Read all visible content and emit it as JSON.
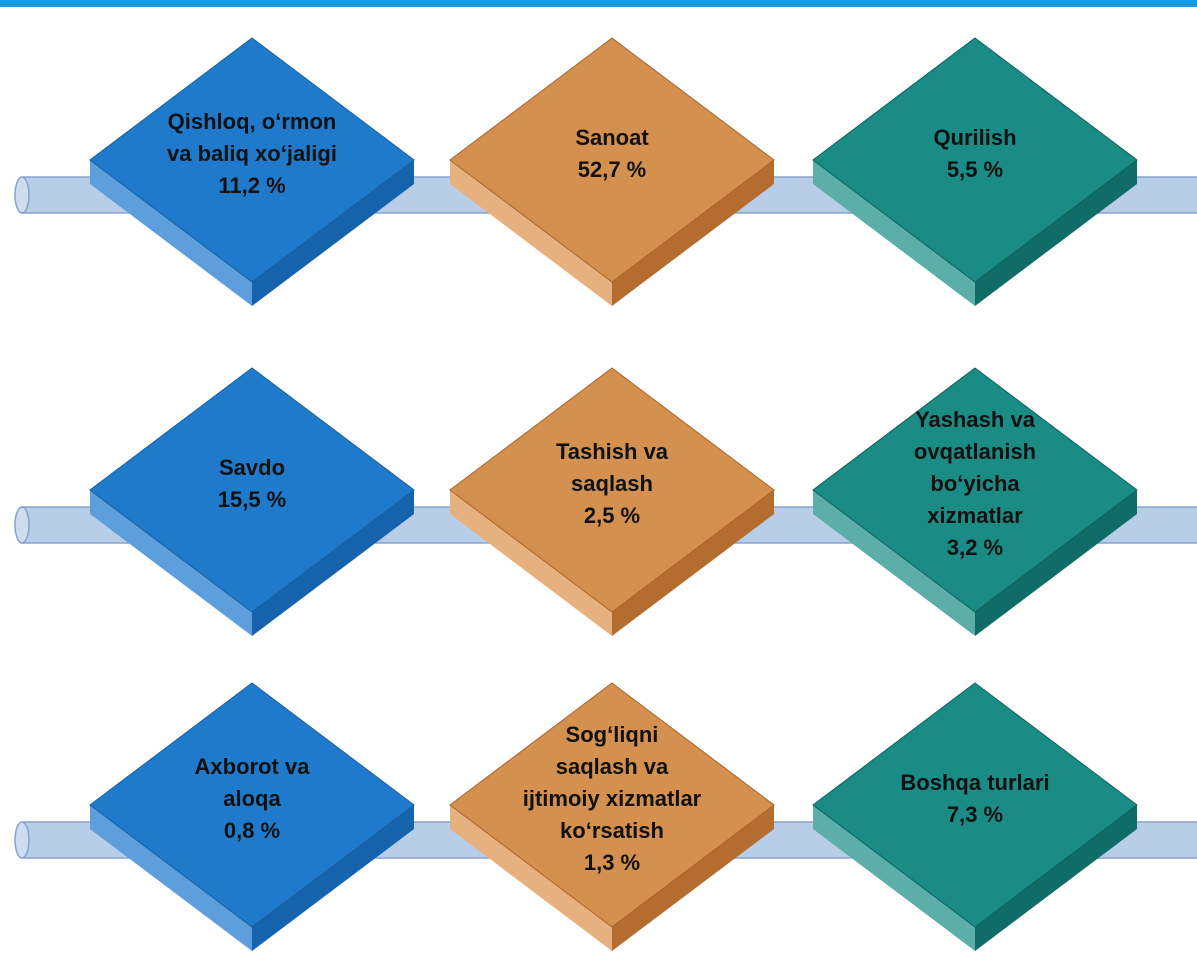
{
  "rows": [
    {
      "items": [
        {
          "label": [
            "Qishloq, o‘rmon",
            "va baliq xo‘jaligi"
          ],
          "value": "11,2 %"
        },
        {
          "label": [
            "Sanoat"
          ],
          "value": "52,7 %"
        },
        {
          "label": [
            "Qurilish"
          ],
          "value": "5,5 %"
        }
      ]
    },
    {
      "items": [
        {
          "label": [
            "Savdo"
          ],
          "value": "15,5 %"
        },
        {
          "label": [
            "Tashish va",
            "saqlash"
          ],
          "value": "2,5 %"
        },
        {
          "label": [
            "Yashash va",
            "ovqatlanish",
            "bo‘yicha",
            "xizmatlar"
          ],
          "value": "3,2 %"
        }
      ]
    },
    {
      "items": [
        {
          "label": [
            "Axborot va",
            "aloqa"
          ],
          "value": "0,8 %"
        },
        {
          "label": [
            "Sog‘liqni",
            "saqlash va",
            "ijtimoiy xizmatlar",
            "ko‘rsatish"
          ],
          "value": "1,3 %"
        },
        {
          "label": [
            "Boshqa turlari"
          ],
          "value": "7,3 %"
        }
      ]
    }
  ]
}
